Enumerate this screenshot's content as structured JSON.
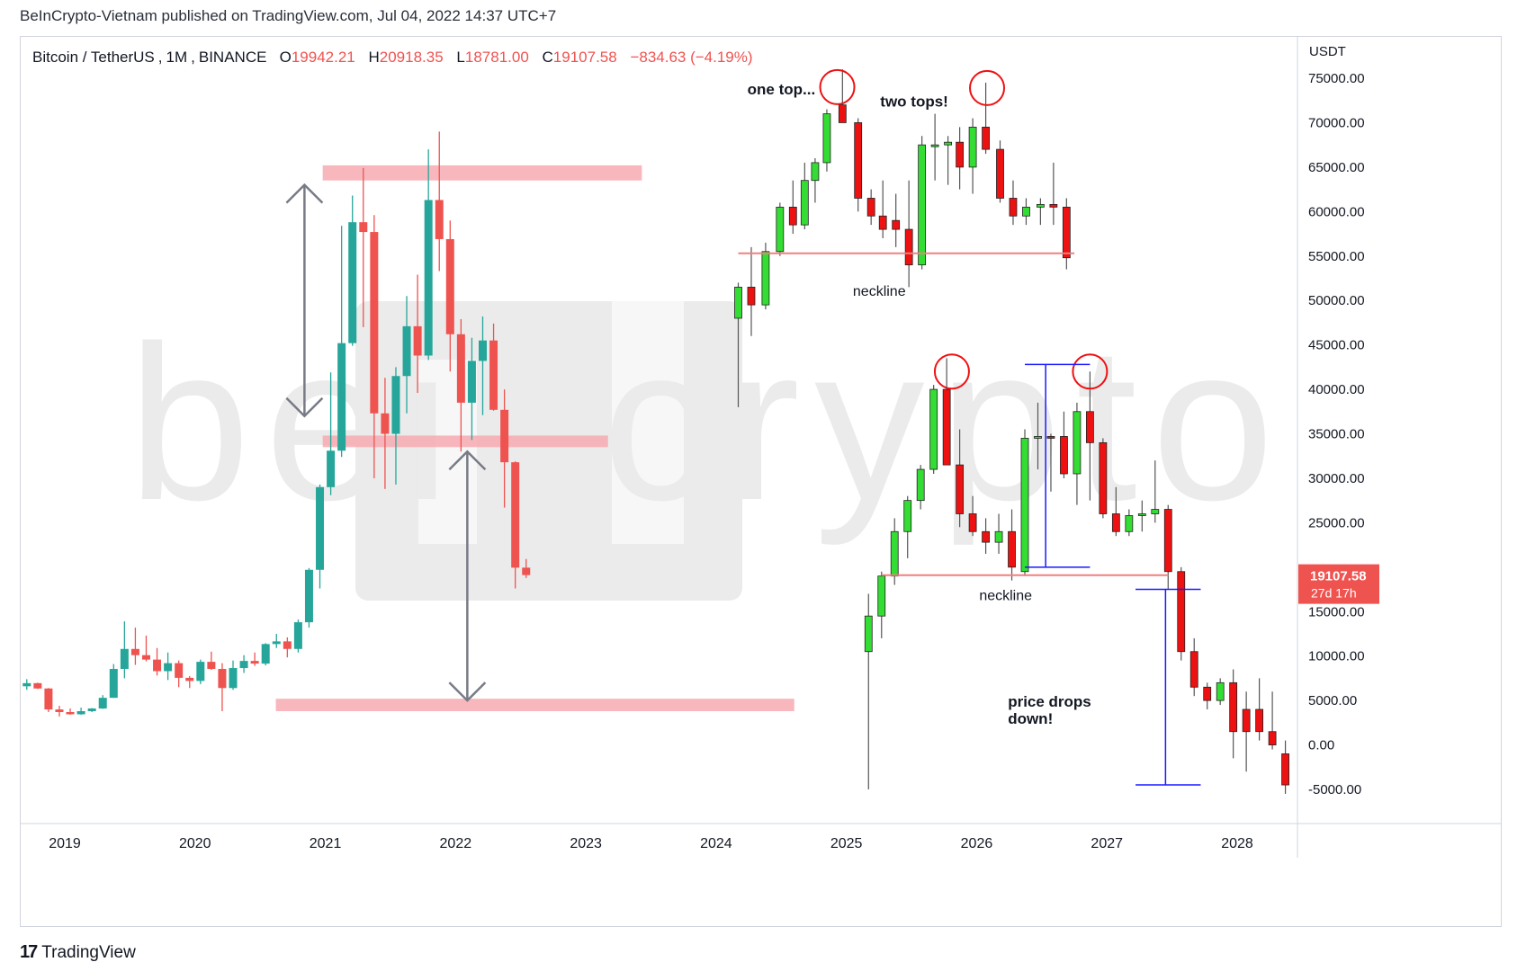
{
  "header": {
    "published": "BeInCrypto-Vietnam published on TradingView.com, Jul 04, 2022 14:37 UTC+7"
  },
  "symbol_bar": {
    "symbol": "Bitcoin / TetherUS",
    "interval": "1M",
    "exchange": "BINANCE",
    "open_label": "O",
    "open": "19942.21",
    "high_label": "H",
    "high": "20918.35",
    "low_label": "L",
    "low": "18781.00",
    "close_label": "C",
    "close": "19107.58",
    "change": "−834.63 (−4.19%)"
  },
  "footer": {
    "brand": "TradingView",
    "logo_icon": "tradingview-logo-icon"
  },
  "colors": {
    "up": "#26a69a",
    "down": "#ef5350",
    "illus_up": "#33dd33",
    "illus_down": "#ee1111",
    "zone": "#f7aab2",
    "neckline": "#f08080",
    "arrow": "#787b86",
    "measure": "#1a1aff",
    "circle": "#ee1111",
    "price_tag": "#ef5350",
    "watermark": "#ebebeb"
  },
  "chart_data": {
    "type": "candlestick",
    "title": "",
    "xlabel": "",
    "ylabel": "",
    "currency": "USDT",
    "ylim": [
      -7000,
      78000
    ],
    "xlim": [
      2018.7,
      2029.0
    ],
    "x_ticks": [
      "2019",
      "2020",
      "2021",
      "2022",
      "2023",
      "2024",
      "2025",
      "2026",
      "2027",
      "2028"
    ],
    "y_ticks": [
      "75000.00",
      "70000.00",
      "65000.00",
      "60000.00",
      "55000.00",
      "50000.00",
      "45000.00",
      "40000.00",
      "35000.00",
      "30000.00",
      "25000.00",
      "15000.00",
      "10000.00",
      "5000.00",
      "0.00",
      "-5000.00"
    ],
    "last_price": {
      "value": 19107.58,
      "label": "19107.58",
      "countdown": "27d 17h"
    },
    "watermark": "beincrypto",
    "series": [
      {
        "name": "",
        "style": "real",
        "candles": [
          {
            "t": "2018-09",
            "o": 6600,
            "h": 7400,
            "l": 6200,
            "c": 6950
          },
          {
            "t": "2018-10",
            "o": 6950,
            "h": 7000,
            "l": 6300,
            "c": 6350
          },
          {
            "t": "2018-11",
            "o": 6350,
            "h": 6400,
            "l": 3700,
            "c": 3990
          },
          {
            "t": "2018-12",
            "o": 3990,
            "h": 4400,
            "l": 3200,
            "c": 3700
          },
          {
            "t": "2019-01",
            "o": 3700,
            "h": 4100,
            "l": 3400,
            "c": 3450
          },
          {
            "t": "2019-02",
            "o": 3450,
            "h": 4200,
            "l": 3400,
            "c": 3800
          },
          {
            "t": "2019-03",
            "o": 3800,
            "h": 4150,
            "l": 3700,
            "c": 4100
          },
          {
            "t": "2019-04",
            "o": 4100,
            "h": 5600,
            "l": 4050,
            "c": 5300
          },
          {
            "t": "2019-05",
            "o": 5300,
            "h": 9100,
            "l": 5300,
            "c": 8550
          },
          {
            "t": "2019-06",
            "o": 8550,
            "h": 13900,
            "l": 7500,
            "c": 10800
          },
          {
            "t": "2019-07",
            "o": 10800,
            "h": 13200,
            "l": 9000,
            "c": 10100
          },
          {
            "t": "2019-08",
            "o": 10100,
            "h": 12300,
            "l": 9400,
            "c": 9600
          },
          {
            "t": "2019-09",
            "o": 9600,
            "h": 10900,
            "l": 7800,
            "c": 8300
          },
          {
            "t": "2019-10",
            "o": 8300,
            "h": 10400,
            "l": 7300,
            "c": 9200
          },
          {
            "t": "2019-11",
            "o": 9200,
            "h": 9500,
            "l": 6500,
            "c": 7550
          },
          {
            "t": "2019-12",
            "o": 7550,
            "h": 7750,
            "l": 6400,
            "c": 7200
          },
          {
            "t": "2020-01",
            "o": 7200,
            "h": 9600,
            "l": 6850,
            "c": 9350
          },
          {
            "t": "2020-02",
            "o": 9350,
            "h": 10500,
            "l": 8450,
            "c": 8550
          },
          {
            "t": "2020-03",
            "o": 8550,
            "h": 9200,
            "l": 3800,
            "c": 6400
          },
          {
            "t": "2020-04",
            "o": 6400,
            "h": 9500,
            "l": 6200,
            "c": 8650
          },
          {
            "t": "2020-05",
            "o": 8650,
            "h": 10100,
            "l": 8100,
            "c": 9450
          },
          {
            "t": "2020-06",
            "o": 9450,
            "h": 10400,
            "l": 8900,
            "c": 9150
          },
          {
            "t": "2020-07",
            "o": 9150,
            "h": 11450,
            "l": 8950,
            "c": 11350
          },
          {
            "t": "2020-08",
            "o": 11350,
            "h": 12500,
            "l": 10900,
            "c": 11650
          },
          {
            "t": "2020-09",
            "o": 11650,
            "h": 12100,
            "l": 9850,
            "c": 10800
          },
          {
            "t": "2020-10",
            "o": 10800,
            "h": 14100,
            "l": 10400,
            "c": 13800
          },
          {
            "t": "2020-11",
            "o": 13800,
            "h": 19900,
            "l": 13200,
            "c": 19700
          },
          {
            "t": "2020-12",
            "o": 19700,
            "h": 29300,
            "l": 17600,
            "c": 29000
          },
          {
            "t": "2021-01",
            "o": 29000,
            "h": 41900,
            "l": 28100,
            "c": 33100
          },
          {
            "t": "2021-02",
            "o": 33100,
            "h": 58400,
            "l": 32400,
            "c": 45200
          },
          {
            "t": "2021-03",
            "o": 45200,
            "h": 61800,
            "l": 44900,
            "c": 58800
          },
          {
            "t": "2021-04",
            "o": 58800,
            "h": 64900,
            "l": 47000,
            "c": 57700
          },
          {
            "t": "2021-05",
            "o": 57700,
            "h": 59600,
            "l": 30000,
            "c": 37300
          },
          {
            "t": "2021-06",
            "o": 37300,
            "h": 41300,
            "l": 28800,
            "c": 35000
          },
          {
            "t": "2021-07",
            "o": 35000,
            "h": 42500,
            "l": 29300,
            "c": 41500
          },
          {
            "t": "2021-08",
            "o": 41500,
            "h": 50500,
            "l": 37300,
            "c": 47100
          },
          {
            "t": "2021-09",
            "o": 47100,
            "h": 52900,
            "l": 39600,
            "c": 43800
          },
          {
            "t": "2021-10",
            "o": 43800,
            "h": 67000,
            "l": 43300,
            "c": 61300
          },
          {
            "t": "2021-11",
            "o": 61300,
            "h": 69000,
            "l": 53300,
            "c": 56900
          },
          {
            "t": "2021-12",
            "o": 56900,
            "h": 59000,
            "l": 42000,
            "c": 46200
          },
          {
            "t": "2022-01",
            "o": 46200,
            "h": 47900,
            "l": 33000,
            "c": 38500
          },
          {
            "t": "2022-02",
            "o": 38500,
            "h": 45800,
            "l": 34300,
            "c": 43200
          },
          {
            "t": "2022-03",
            "o": 43200,
            "h": 48200,
            "l": 37100,
            "c": 45500
          },
          {
            "t": "2022-04",
            "o": 45500,
            "h": 47400,
            "l": 37600,
            "c": 37700
          },
          {
            "t": "2022-05",
            "o": 37700,
            "h": 40000,
            "l": 26700,
            "c": 31800
          },
          {
            "t": "2022-06",
            "o": 31800,
            "h": 31900,
            "l": 17600,
            "c": 19942
          },
          {
            "t": "2022-07",
            "o": 19942,
            "h": 20918,
            "l": 18781,
            "c": 19108
          }
        ]
      },
      {
        "name": "",
        "style": "illustration",
        "candles": [
          {
            "x": 2024.17,
            "o": 48000,
            "h": 52000,
            "l": 38000,
            "c": 51500
          },
          {
            "x": 2024.27,
            "o": 51500,
            "h": 56000,
            "l": 46000,
            "c": 49500
          },
          {
            "x": 2024.38,
            "o": 49500,
            "h": 56500,
            "l": 49000,
            "c": 55500
          },
          {
            "x": 2024.49,
            "o": 55500,
            "h": 61000,
            "l": 55000,
            "c": 60500
          },
          {
            "x": 2024.59,
            "o": 60500,
            "h": 63500,
            "l": 57500,
            "c": 58500
          },
          {
            "x": 2024.68,
            "o": 58500,
            "h": 65500,
            "l": 58000,
            "c": 63500
          },
          {
            "x": 2024.76,
            "o": 63500,
            "h": 66000,
            "l": 61000,
            "c": 65500
          },
          {
            "x": 2024.85,
            "o": 65500,
            "h": 71500,
            "l": 64500,
            "c": 71000
          },
          {
            "x": 2024.97,
            "o": 72000,
            "h": 76000,
            "l": 70000,
            "c": 70000
          },
          {
            "x": 2025.09,
            "o": 70000,
            "h": 70500,
            "l": 60000,
            "c": 61500
          },
          {
            "x": 2025.19,
            "o": 61500,
            "h": 62500,
            "l": 58500,
            "c": 59500
          },
          {
            "x": 2025.28,
            "o": 59500,
            "h": 63500,
            "l": 57000,
            "c": 58000
          },
          {
            "x": 2025.38,
            "o": 59000,
            "h": 62000,
            "l": 56000,
            "c": 58000
          },
          {
            "x": 2025.48,
            "o": 58000,
            "h": 63500,
            "l": 51500,
            "c": 54000
          },
          {
            "x": 2025.58,
            "o": 54000,
            "h": 68500,
            "l": 53500,
            "c": 67500
          },
          {
            "x": 2025.68,
            "o": 67500,
            "h": 71000,
            "l": 63500,
            "c": 67500
          },
          {
            "x": 2025.78,
            "o": 67500,
            "h": 68500,
            "l": 63000,
            "c": 67800
          },
          {
            "x": 2025.87,
            "o": 67800,
            "h": 69500,
            "l": 62500,
            "c": 65000
          },
          {
            "x": 2025.97,
            "o": 65000,
            "h": 70500,
            "l": 62000,
            "c": 69500
          },
          {
            "x": 2026.07,
            "o": 69500,
            "h": 74500,
            "l": 66500,
            "c": 67000
          },
          {
            "x": 2026.18,
            "o": 67000,
            "h": 68000,
            "l": 61000,
            "c": 61500
          },
          {
            "x": 2026.28,
            "o": 61500,
            "h": 63500,
            "l": 58500,
            "c": 59500
          },
          {
            "x": 2026.38,
            "o": 59500,
            "h": 61500,
            "l": 58500,
            "c": 60500
          },
          {
            "x": 2026.49,
            "o": 60500,
            "h": 61500,
            "l": 58500,
            "c": 60800
          },
          {
            "x": 2026.59,
            "o": 60800,
            "h": 65500,
            "l": 58500,
            "c": 60500
          },
          {
            "x": 2026.69,
            "o": 60500,
            "h": 61500,
            "l": 53500,
            "c": 54800
          },
          {
            "x": 2025.17,
            "o": 10500,
            "h": 17000,
            "l": -5000,
            "c": 14500
          },
          {
            "x": 2025.27,
            "o": 14500,
            "h": 19500,
            "l": 12000,
            "c": 19000
          },
          {
            "x": 2025.37,
            "o": 19000,
            "h": 25500,
            "l": 18000,
            "c": 24000
          },
          {
            "x": 2025.47,
            "o": 24000,
            "h": 28000,
            "l": 21000,
            "c": 27500
          },
          {
            "x": 2025.57,
            "o": 27500,
            "h": 31500,
            "l": 26500,
            "c": 31000
          },
          {
            "x": 2025.67,
            "o": 31000,
            "h": 40500,
            "l": 30500,
            "c": 40000
          },
          {
            "x": 2025.77,
            "o": 40000,
            "h": 43500,
            "l": 31500,
            "c": 31500
          },
          {
            "x": 2025.87,
            "o": 31500,
            "h": 35500,
            "l": 24500,
            "c": 26000
          },
          {
            "x": 2025.97,
            "o": 26000,
            "h": 28000,
            "l": 23500,
            "c": 24000
          },
          {
            "x": 2026.07,
            "o": 24000,
            "h": 25500,
            "l": 21500,
            "c": 22800
          },
          {
            "x": 2026.17,
            "o": 22800,
            "h": 26000,
            "l": 21500,
            "c": 24000
          },
          {
            "x": 2026.27,
            "o": 24000,
            "h": 26500,
            "l": 18500,
            "c": 20000
          },
          {
            "x": 2026.37,
            "o": 19500,
            "h": 35500,
            "l": 19000,
            "c": 34500
          },
          {
            "x": 2026.47,
            "o": 34500,
            "h": 38500,
            "l": 31000,
            "c": 34700
          },
          {
            "x": 2026.57,
            "o": 34700,
            "h": 35000,
            "l": 28500,
            "c": 34500
          },
          {
            "x": 2026.67,
            "o": 34700,
            "h": 37500,
            "l": 30000,
            "c": 30500
          },
          {
            "x": 2026.77,
            "o": 30500,
            "h": 38500,
            "l": 27000,
            "c": 37500
          },
          {
            "x": 2026.87,
            "o": 37500,
            "h": 42000,
            "l": 27500,
            "c": 34000
          },
          {
            "x": 2026.97,
            "o": 34000,
            "h": 34500,
            "l": 25500,
            "c": 26000
          },
          {
            "x": 2027.07,
            "o": 26000,
            "h": 29000,
            "l": 23500,
            "c": 24000
          },
          {
            "x": 2027.17,
            "o": 24000,
            "h": 26500,
            "l": 23500,
            "c": 25800
          },
          {
            "x": 2027.27,
            "o": 25800,
            "h": 27500,
            "l": 24000,
            "c": 26000
          },
          {
            "x": 2027.37,
            "o": 26000,
            "h": 32000,
            "l": 25000,
            "c": 26500
          },
          {
            "x": 2027.47,
            "o": 26500,
            "h": 27000,
            "l": 17500,
            "c": 19500
          },
          {
            "x": 2027.57,
            "o": 19500,
            "h": 20000,
            "l": 9500,
            "c": 10500
          },
          {
            "x": 2027.67,
            "o": 10500,
            "h": 12000,
            "l": 5500,
            "c": 6500
          },
          {
            "x": 2027.77,
            "o": 6500,
            "h": 7000,
            "l": 4000,
            "c": 5000
          },
          {
            "x": 2027.87,
            "o": 5000,
            "h": 7500,
            "l": 4500,
            "c": 7000
          },
          {
            "x": 2027.97,
            "o": 7000,
            "h": 8500,
            "l": -1500,
            "c": 1500
          },
          {
            "x": 2028.07,
            "o": 4000,
            "h": 6000,
            "l": -3000,
            "c": 1500
          },
          {
            "x": 2028.17,
            "o": 4000,
            "h": 7500,
            "l": 500,
            "c": 1500
          },
          {
            "x": 2028.27,
            "o": 1500,
            "h": 6000,
            "l": -500,
            "c": 0
          },
          {
            "x": 2028.37,
            "o": -1000,
            "h": 500,
            "l": -5500,
            "c": -4500
          }
        ]
      }
    ],
    "annotations": {
      "zones": [
        {
          "x0": 2020.98,
          "x1": 2023.43,
          "y0": 63500,
          "y1": 65200
        },
        {
          "x0": 2020.98,
          "x1": 2023.17,
          "y0": 33500,
          "y1": 34800
        },
        {
          "x0": 2020.62,
          "x1": 2024.6,
          "y0": 3800,
          "y1": 5200
        }
      ],
      "arrows": [
        {
          "x": 2020.84,
          "y_from": 37000,
          "y_to": 63000
        },
        {
          "x": 2022.09,
          "y_from": 33000,
          "y_to": 5000
        }
      ],
      "necklines": [
        {
          "x0": 2024.17,
          "x1": 2026.75,
          "y": 55300
        },
        {
          "x0": 2025.27,
          "x1": 2027.47,
          "y": 19100
        }
      ],
      "circles": [
        {
          "x": 2024.93,
          "y": 74000
        },
        {
          "x": 2026.08,
          "y": 73900
        },
        {
          "x": 2025.81,
          "y": 42000
        },
        {
          "x": 2026.87,
          "y": 42000
        }
      ],
      "measures": [
        {
          "x": 2026.53,
          "x_cap0": 2026.37,
          "x_cap1": 2026.87,
          "y_top": 42800,
          "y_bottom": 20000
        },
        {
          "x": 2027.45,
          "x_cap0": 2027.22,
          "x_cap1": 2027.72,
          "y_top": 17500,
          "y_bottom": -4500
        }
      ],
      "labels": [
        {
          "text": "one top...",
          "x": 2024.24,
          "y": 73200,
          "bold": true
        },
        {
          "text": "two tops!",
          "x": 2025.26,
          "y": 71800,
          "bold": true
        },
        {
          "text": "neckline",
          "x": 2025.05,
          "y": 50500,
          "bold": false
        },
        {
          "text": "neckline",
          "x": 2026.02,
          "y": 16300,
          "bold": false
        },
        {
          "text": "price drops",
          "x": 2026.24,
          "y": 4300,
          "bold": true
        },
        {
          "text": "down!",
          "x": 2026.24,
          "y": 2400,
          "bold": true
        }
      ]
    }
  }
}
